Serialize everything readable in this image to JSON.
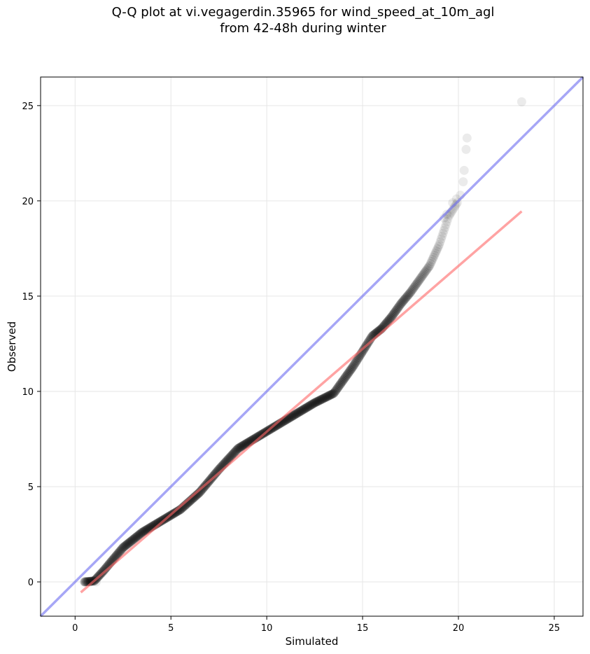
{
  "chart_data": {
    "type": "scatter",
    "title": "Q-Q plot at vi.vegagerdin.35965 for wind_speed_at_10m_agl\nfrom 42-48h during winter",
    "xlabel": "Simulated",
    "ylabel": "Observed",
    "xlim": [
      -1.8,
      26.5
    ],
    "ylim": [
      -1.8,
      26.5
    ],
    "x_ticks": [
      0,
      5,
      10,
      15,
      20,
      25
    ],
    "y_ticks": [
      0,
      5,
      10,
      15,
      20,
      25
    ],
    "grid": true,
    "colors": {
      "points": "#000000",
      "fit_line": "#ff6666",
      "identity_line": "#6b6bf0",
      "grid": "#e6e6e6"
    },
    "quantile_anchors": {
      "x": [
        0.5,
        1.0,
        1.5,
        2.5,
        3.5,
        4.5,
        5.5,
        6.5,
        7.5,
        8.5,
        9.5,
        10.5,
        11.5,
        12.5,
        13.5,
        14.5,
        15.0,
        15.5,
        16.0,
        16.5,
        17.0,
        17.5,
        18.0,
        18.5,
        19.0,
        19.5,
        20.0
      ],
      "y": [
        0.0,
        0.05,
        0.6,
        1.8,
        2.6,
        3.2,
        3.8,
        4.7,
        5.9,
        7.0,
        7.6,
        8.2,
        8.8,
        9.4,
        9.9,
        11.3,
        12.1,
        12.9,
        13.3,
        13.9,
        14.6,
        15.2,
        15.9,
        16.6,
        17.7,
        19.2,
        20.0
      ]
    },
    "tail_points": {
      "x": [
        0.8,
        1.1,
        0.5,
        19.25,
        19.4,
        19.7,
        19.9,
        20.1,
        20.25,
        20.3,
        20.4,
        20.45,
        23.3
      ],
      "y": [
        0.0,
        0.0,
        0.0,
        19.1,
        19.3,
        19.9,
        20.1,
        20.3,
        21.0,
        21.6,
        22.7,
        23.3,
        25.2
      ]
    },
    "fit_line": {
      "x": [
        0.3,
        23.3
      ],
      "y": [
        -0.55,
        19.45
      ]
    },
    "identity_line": {
      "x": [
        -1.8,
        26.5
      ],
      "y": [
        -1.8,
        26.5
      ]
    }
  }
}
